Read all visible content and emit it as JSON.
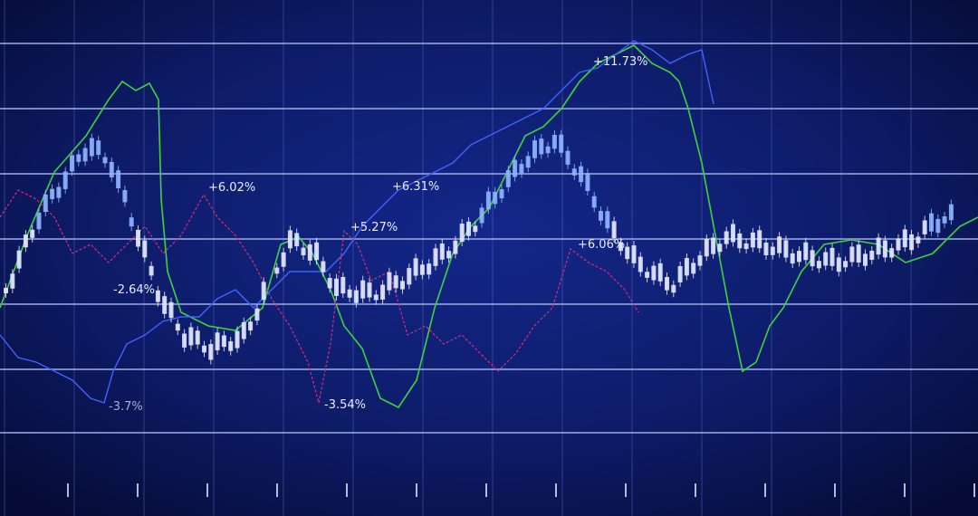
{
  "annotations": [
    "+11.73%",
    "+6.02%",
    "+6.31%",
    "+5.27%",
    "+6.06%",
    "-2.64%",
    "-3.54%",
    "-3.7%"
  ]
}
